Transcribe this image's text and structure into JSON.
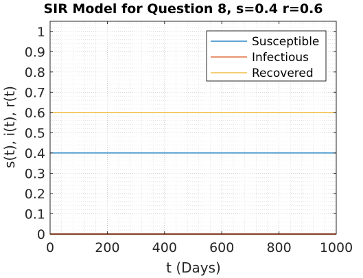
{
  "chart_data": {
    "type": "line",
    "title": "SIR Model for Question 8, s=0.4 r=0.6",
    "xlabel": "t (Days)",
    "ylabel": "s(t), i(t), r(t)",
    "xlim": [
      0,
      1000
    ],
    "ylim": [
      0,
      1.05
    ],
    "xticks": [
      0,
      200,
      400,
      600,
      800,
      1000
    ],
    "xtick_labels": [
      "0",
      "200",
      "400",
      "600",
      "800",
      "1000"
    ],
    "yticks": [
      0,
      0.1,
      0.2,
      0.3,
      0.4,
      0.5,
      0.6,
      0.7,
      0.8,
      0.9,
      1
    ],
    "ytick_labels": [
      "0",
      "0.1",
      "0.2",
      "0.3",
      "0.4",
      "0.5",
      "0.6",
      "0.7",
      "0.8",
      "0.9",
      "1"
    ],
    "grid": "major and minor (dotted)",
    "legend_position": "top-right",
    "x": [
      0,
      1000
    ],
    "series": [
      {
        "name": "Susceptible",
        "values": [
          0.4,
          0.4
        ],
        "color": "#0072BD"
      },
      {
        "name": "Infectious",
        "values": [
          0,
          0
        ],
        "color": "#D95319"
      },
      {
        "name": "Recovered",
        "values": [
          0.6,
          0.6
        ],
        "color": "#EDB120"
      }
    ]
  }
}
